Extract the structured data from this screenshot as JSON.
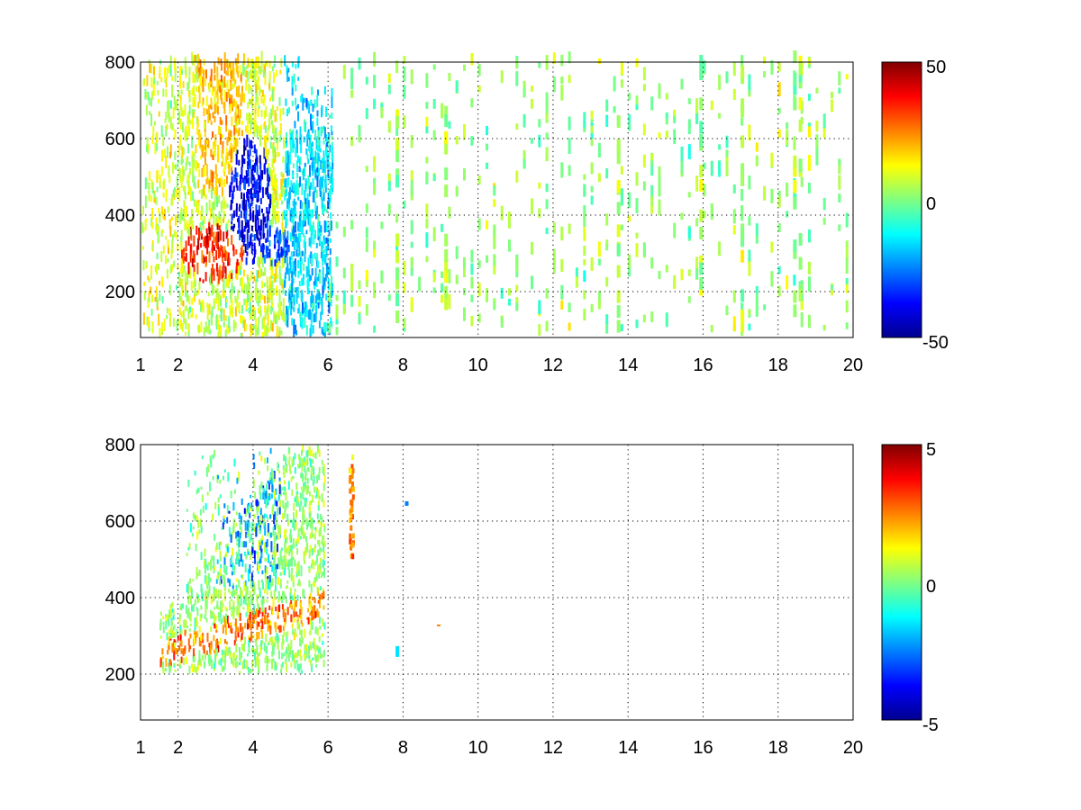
{
  "chart_data": [
    {
      "type": "heatmap",
      "title": "",
      "xlabel": "",
      "ylabel": "",
      "xlim": [
        1,
        20
      ],
      "ylim": [
        80,
        800
      ],
      "xticks": [
        1,
        2,
        4,
        6,
        8,
        10,
        12,
        14,
        16,
        18,
        20
      ],
      "xtick_labels": [
        "1",
        "2",
        "4",
        "6",
        "8",
        "10",
        "12",
        "14",
        "16",
        "18",
        "20"
      ],
      "yticks": [
        200,
        400,
        600,
        800
      ],
      "ytick_labels": [
        "200",
        "400",
        "600",
        "800"
      ],
      "grid": true,
      "colormap": "jet",
      "colorbar": {
        "min": -50,
        "max": 50,
        "ticks": [
          50,
          0,
          -50
        ],
        "tick_labels": [
          "50",
          "0",
          "-50"
        ]
      },
      "features": [
        {
          "x": [
            2.2,
            3.6
          ],
          "y": [
            230,
            330
          ],
          "value": 40,
          "description": "positive band"
        },
        {
          "x": [
            3.2,
            4.6
          ],
          "y": [
            300,
            700
          ],
          "value": -40,
          "description": "negative region"
        },
        {
          "x": [
            6,
            20
          ],
          "y": [
            80,
            800
          ],
          "value": 0,
          "description": "sparse near-zero scatter"
        }
      ]
    },
    {
      "type": "heatmap",
      "title": "",
      "xlabel": "",
      "ylabel": "",
      "xlim": [
        1,
        20
      ],
      "ylim": [
        80,
        800
      ],
      "xticks": [
        1,
        2,
        4,
        6,
        8,
        10,
        12,
        14,
        16,
        18,
        20
      ],
      "xtick_labels": [
        "1",
        "2",
        "4",
        "6",
        "8",
        "10",
        "12",
        "14",
        "16",
        "18",
        "20"
      ],
      "yticks": [
        200,
        400,
        600,
        800
      ],
      "ytick_labels": [
        "200",
        "400",
        "600",
        "800"
      ],
      "grid": true,
      "colormap": "jet",
      "colorbar": {
        "min": -5,
        "max": 5,
        "ticks": [
          5,
          0,
          -5
        ],
        "tick_labels": [
          "5",
          "0",
          "-5"
        ]
      },
      "features": [
        {
          "x": [
            2.0,
            5.8
          ],
          "y": [
            230,
            420
          ],
          "value": 2.5,
          "description": "positive band"
        },
        {
          "x": [
            3.0,
            4.8
          ],
          "y": [
            400,
            780
          ],
          "value": -2,
          "description": "negative streaks"
        },
        {
          "x": [
            6.5,
            6.7
          ],
          "y": [
            500,
            760
          ],
          "value": 2.5,
          "description": "isolated column"
        }
      ]
    }
  ]
}
